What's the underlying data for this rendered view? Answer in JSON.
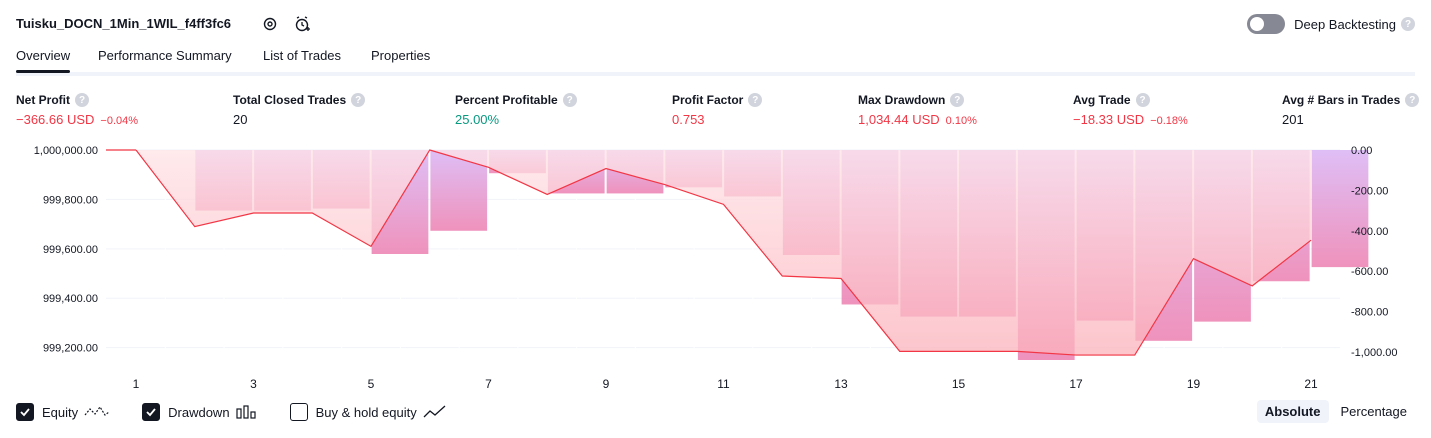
{
  "header": {
    "title": "Tuisku_DOCN_1Min_1WIL_f4ff3fc6",
    "deep_backtesting_label": "Deep Backtesting",
    "help_glyph": "?"
  },
  "tabs": [
    "Overview",
    "Performance Summary",
    "List of Trades",
    "Properties"
  ],
  "stats": [
    {
      "label": "Net Profit",
      "value": "−366.66 USD",
      "pct": "−0.04%",
      "tone": "neg"
    },
    {
      "label": "Total Closed Trades",
      "value": "20",
      "pct": "",
      "tone": "neutral"
    },
    {
      "label": "Percent Profitable",
      "value": "25.00%",
      "pct": "",
      "tone": "pos"
    },
    {
      "label": "Profit Factor",
      "value": "0.753",
      "pct": "",
      "tone": "neg"
    },
    {
      "label": "Max Drawdown",
      "value": "1,034.44 USD",
      "pct": "0.10%",
      "tone": "neg"
    },
    {
      "label": "Avg Trade",
      "value": "−18.33 USD",
      "pct": "−0.18%",
      "tone": "neg"
    },
    {
      "label": "Avg # Bars in Trades",
      "value": "201",
      "pct": "",
      "tone": "neutral"
    }
  ],
  "chart_data": {
    "type": "line",
    "x": [
      1,
      2,
      3,
      4,
      5,
      6,
      7,
      8,
      9,
      10,
      11,
      12,
      13,
      14,
      15,
      16,
      17,
      18,
      19,
      20,
      21
    ],
    "x_tick_labels": [
      "1",
      "3",
      "5",
      "7",
      "9",
      "11",
      "13",
      "15",
      "17",
      "19",
      "21"
    ],
    "left_axis_ticks": [
      "1,000,000.00",
      "999,800.00",
      "999,600.00",
      "999,400.00",
      "999,200.00"
    ],
    "left_ylim": [
      999150,
      1000000
    ],
    "right_axis_ticks": [
      "0.00",
      "-200.00",
      "-400.00",
      "-600.00",
      "-800.00",
      "-1,000.00"
    ],
    "right_ylim": [
      -1040,
      0
    ],
    "series": [
      {
        "name": "Equity",
        "axis": "left",
        "color": "#f23645",
        "values": [
          1000000,
          999690,
          999745,
          999745,
          999610,
          1000000,
          999930,
          999820,
          999925,
          999860,
          999780,
          999490,
          999480,
          999185,
          999185,
          999185,
          999170,
          999170,
          999560,
          999450,
          999635
        ]
      },
      {
        "name": "Drawdown",
        "axis": "right",
        "color": "#c9a6f5",
        "values": [
          0,
          -300,
          -300,
          -290,
          -515,
          -400,
          -115,
          -215,
          -215,
          -185,
          -230,
          -520,
          -765,
          -825,
          -825,
          -1040,
          -845,
          -945,
          -850,
          -650,
          -580
        ]
      }
    ],
    "legend": [
      "Equity",
      "Drawdown",
      "Buy & hold equity"
    ],
    "legend_checked": [
      true,
      true,
      false
    ],
    "grid": true
  },
  "modes": {
    "absolute": "Absolute",
    "percentage": "Percentage",
    "selected": "Absolute"
  }
}
